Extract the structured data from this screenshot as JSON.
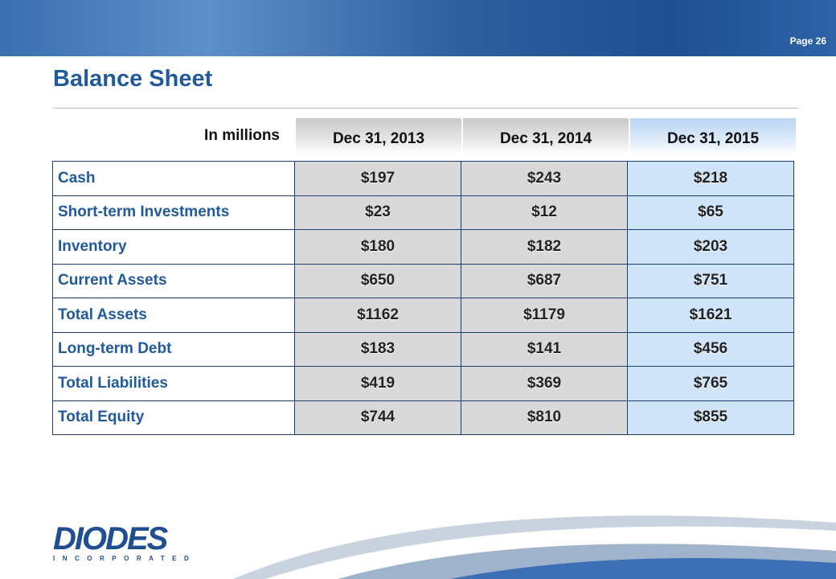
{
  "header": {
    "page": "Page 26"
  },
  "title": "Balance Sheet",
  "table": {
    "unit_label": "In millions",
    "columns": [
      "Dec 31, 2013",
      "Dec 31, 2014",
      "Dec 31, 2015"
    ],
    "rows": [
      [
        "Cash",
        "$197",
        "$243",
        "$218"
      ],
      [
        "Short-term Investments",
        "$23",
        "$12",
        "$65"
      ],
      [
        "Inventory",
        "$180",
        "$182",
        "$203"
      ],
      [
        "Current Assets",
        "$650",
        "$687",
        "$751"
      ],
      [
        "Total Assets",
        "$1162",
        "$1179",
        "$1621"
      ],
      [
        "Long-term Debt",
        "$183",
        "$141",
        "$456"
      ],
      [
        "Total Liabilities",
        "$419",
        "$369",
        "$765"
      ],
      [
        "Total Equity",
        "$744",
        "$810",
        "$855"
      ]
    ]
  },
  "logo": {
    "name": "DIODES",
    "subtitle": "INCORPORATED"
  }
}
